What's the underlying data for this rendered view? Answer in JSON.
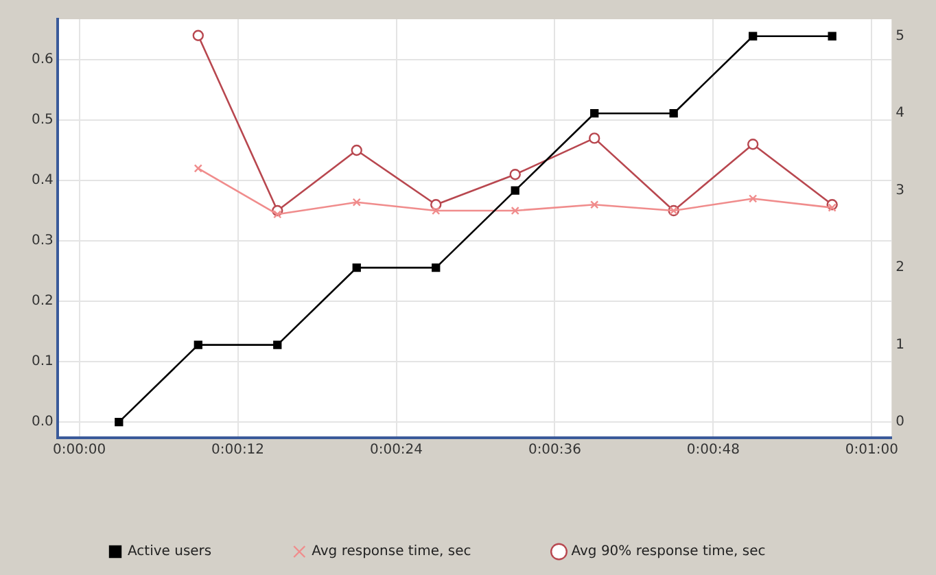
{
  "chart_data": {
    "type": "line",
    "x": [
      3,
      9,
      15,
      21,
      27,
      33,
      39,
      45,
      51,
      57
    ],
    "series": [
      {
        "name": "Active users",
        "color": "#000000",
        "axis": "y2",
        "marker": "square",
        "values": [
          0,
          1,
          1,
          2,
          2,
          3,
          4,
          4,
          5,
          5
        ]
      },
      {
        "name": "Avg response time, sec",
        "color": "#f08c8c",
        "marker": "cross",
        "values": [
          null,
          0.42,
          0.344,
          0.364,
          0.35,
          0.35,
          0.36,
          0.35,
          0.37,
          0.355
        ]
      },
      {
        "name": "Avg 90% response time, sec",
        "color": "#b8474f",
        "marker": "circle",
        "values": [
          null,
          0.64,
          0.35,
          0.45,
          0.36,
          0.41,
          0.47,
          0.35,
          0.46,
          0.36
        ]
      }
    ],
    "xlim": [
      -1.65,
      61.5
    ],
    "xticks": [
      {
        "value": 0,
        "label": "0:00:00"
      },
      {
        "value": 12,
        "label": "0:00:12"
      },
      {
        "value": 24,
        "label": "0:00:24"
      },
      {
        "value": 36,
        "label": "0:00:36"
      },
      {
        "value": 48,
        "label": "0:00:48"
      },
      {
        "value": 60,
        "label": "0:01:00"
      }
    ],
    "ylim": [
      -0.026,
      0.667
    ],
    "yticks": [
      {
        "value": 0,
        "label": "0.0"
      },
      0.1,
      0.2,
      0.3,
      0.4,
      0.5,
      0.6
    ],
    "y2lim": [
      -0.2035,
      5.22
    ],
    "y2ticks": [
      0,
      1,
      2,
      3,
      4,
      5
    ],
    "grid": true,
    "legend": "bottom",
    "line_style": "solid"
  }
}
